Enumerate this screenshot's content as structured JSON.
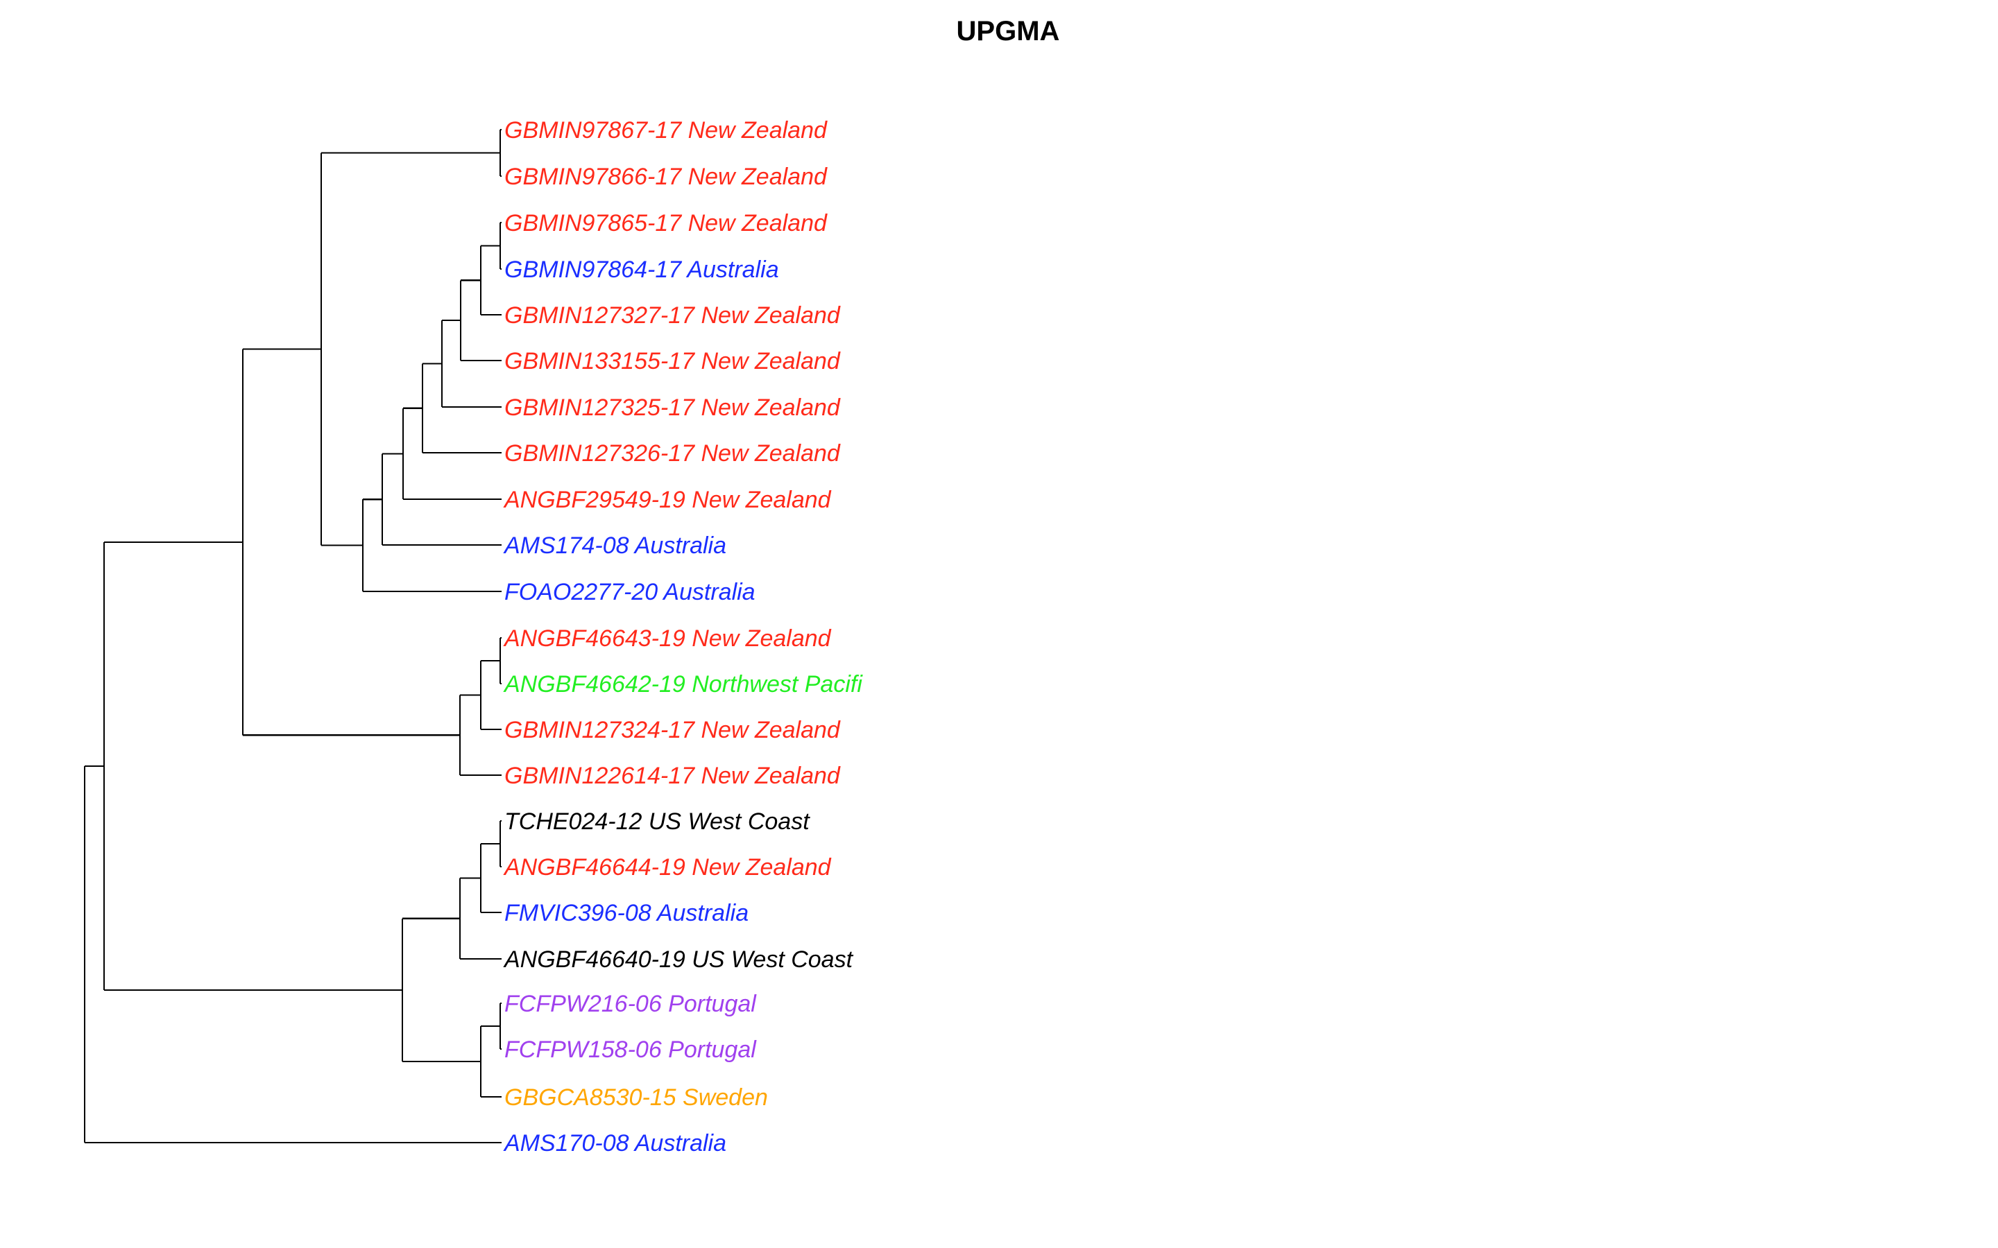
{
  "title": "UPGMA",
  "colors": {
    "New Zealand": "#ff2a1a",
    "Australia": "#1a2eff",
    "Northwest Pacifi": "#22ee22",
    "US West Coast": "#000000",
    "Portugal": "#a040ee",
    "Sweden": "#ffa500",
    "branch": "#000000"
  },
  "tips": [
    {
      "label": "GBMIN97867-17 New Zealand",
      "region": "New Zealand"
    },
    {
      "label": "GBMIN97866-17 New Zealand",
      "region": "New Zealand"
    },
    {
      "label": "GBMIN97865-17 New Zealand",
      "region": "New Zealand"
    },
    {
      "label": "GBMIN97864-17 Australia",
      "region": "Australia"
    },
    {
      "label": "GBMIN127327-17 New Zealand",
      "region": "New Zealand"
    },
    {
      "label": "GBMIN133155-17 New Zealand",
      "region": "New Zealand"
    },
    {
      "label": "GBMIN127325-17 New Zealand",
      "region": "New Zealand"
    },
    {
      "label": "GBMIN127326-17 New Zealand",
      "region": "New Zealand"
    },
    {
      "label": "ANGBF29549-19 New Zealand",
      "region": "New Zealand"
    },
    {
      "label": "AMS174-08 Australia",
      "region": "Australia"
    },
    {
      "label": "FOAO2277-20 Australia",
      "region": "Australia"
    },
    {
      "label": "ANGBF46643-19 New Zealand",
      "region": "New Zealand"
    },
    {
      "label": "ANGBF46642-19 Northwest Pacifi",
      "region": "Northwest Pacifi"
    },
    {
      "label": "GBMIN127324-17 New Zealand",
      "region": "New Zealand"
    },
    {
      "label": "GBMIN122614-17 New Zealand",
      "region": "New Zealand"
    },
    {
      "label": "TCHE024-12 US West Coast",
      "region": "US West Coast"
    },
    {
      "label": "ANGBF46644-19 New Zealand",
      "region": "New Zealand"
    },
    {
      "label": "FMVIC396-08 Australia",
      "region": "Australia"
    },
    {
      "label": "ANGBF46640-19 US West Coast",
      "region": "US West Coast"
    },
    {
      "label": "FCFPW216-06 Portugal",
      "region": "Portugal"
    },
    {
      "label": "FCFPW158-06 Portugal",
      "region": "Portugal"
    },
    {
      "label": "GBGCA8530-15 Sweden",
      "region": "Sweden"
    },
    {
      "label": "AMS170-08 Australia",
      "region": "Australia"
    }
  ],
  "tree_newick": "((((((GBMIN97867-17 New Zealand,GBMIN97866-17 New Zealand),(((((((GBMIN97865-17 New Zealand,GBMIN97864-17 Australia),GBMIN127327-17 New Zealand),GBMIN133155-17 New Zealand),GBMIN127325-17 New Zealand),GBMIN127326-17 New Zealand),ANGBF29549-19 New Zealand),AMS174-08 Australia),FOAO2277-20 Australia)),(((ANGBF46643-19 New Zealand,ANGBF46642-19 Northwest Pacifi),GBMIN127324-17 New Zealand),GBMIN122614-17 New Zealand)),((((TCHE024-12 US West Coast,ANGBF46644-19 New Zealand),FMVIC396-08 Australia),ANGBF46640-19 US West Coast),((FCFPW216-06 Portugal,FCFPW158-06 Portugal),GBGCA8530-15 Sweden))),AMS170-08 Australia)"
}
